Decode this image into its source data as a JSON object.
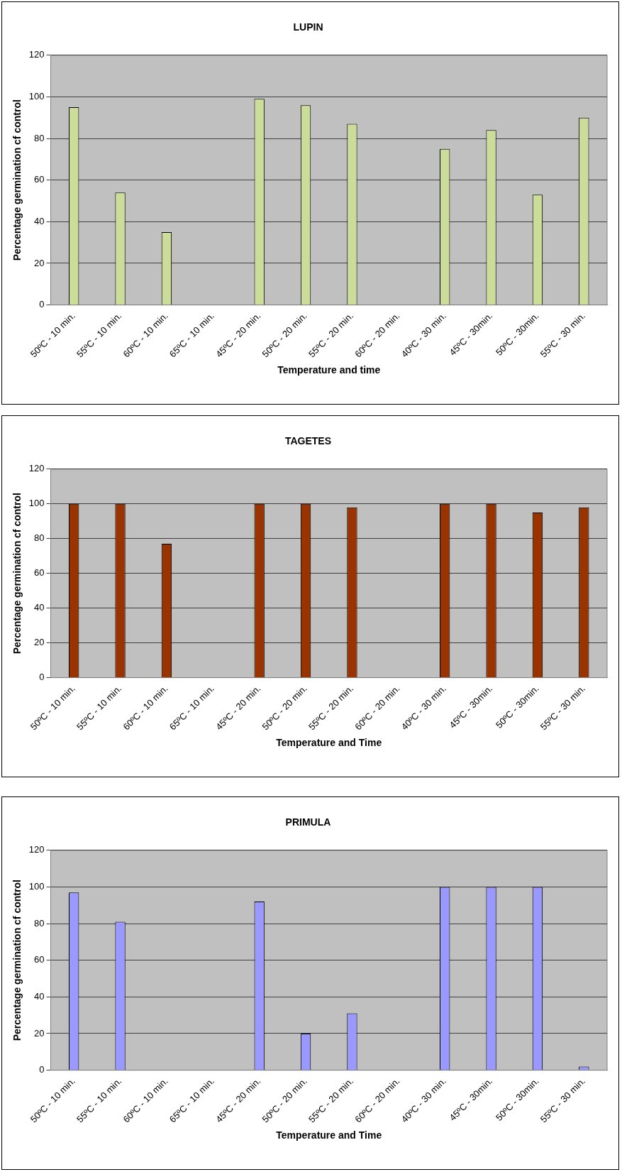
{
  "chart_data": [
    {
      "type": "bar",
      "title": "LUPIN",
      "xlabel": "Temperature and time",
      "ylabel": "Percentage germination cf control",
      "categories": [
        "50ºC - 10 min.",
        "55ºC - 10 min.",
        "60ºC - 10 min.",
        "65ºC - 10 min.",
        "45ºC - 20 min.",
        "50ºC - 20 min.",
        "55ºC - 20 min.",
        "60ºC - 20 min.",
        "40ºC - 30 min.",
        "45ºC - 30min.",
        "50ºC - 30min.",
        "55ºC - 30 min."
      ],
      "values": [
        95,
        54,
        35,
        null,
        99,
        96,
        87,
        null,
        75,
        84,
        53,
        90
      ],
      "color": "#ccdd99",
      "ylim": [
        0,
        120
      ],
      "yticks": [
        0,
        20,
        40,
        60,
        80,
        100,
        120
      ],
      "grid": "y",
      "legend": false
    },
    {
      "type": "bar",
      "title": "TAGETES",
      "xlabel": "Temperature and Time",
      "ylabel": "Percentage germination cf control",
      "categories": [
        "50ºC - 10 min.",
        "55ºC - 10 min.",
        "60ºC - 10 min.",
        "65ºC - 10 min.",
        "45ºC - 20 min.",
        "50ºC - 20 min.",
        "55ºC - 20 min.",
        "60ºC - 20 min.",
        "40ºC - 30 min.",
        "45ºC - 30min.",
        "50ºC - 30min.",
        "55ºC - 30 min."
      ],
      "values": [
        100,
        100,
        77,
        null,
        100,
        100,
        98,
        null,
        100,
        100,
        95,
        98
      ],
      "color": "#993300",
      "ylim": [
        0,
        120
      ],
      "yticks": [
        0,
        20,
        40,
        60,
        80,
        100,
        120
      ],
      "grid": "y",
      "legend": false
    },
    {
      "type": "bar",
      "title": "PRIMULA",
      "xlabel": "Temperature and Time",
      "ylabel": "Percentage germination cf control",
      "categories": [
        "50ºC - 10 min.",
        "55ºC - 10 min.",
        "60ºC - 10 min.",
        "65ºC - 10 min.",
        "45ºC - 20 min.",
        "50ºC - 20 min.",
        "55ºC - 20 min.",
        "60ºC - 20 min.",
        "40ºC - 30 min.",
        "45ºC - 30min.",
        "50ºC - 30min.",
        "55ºC - 30 min."
      ],
      "values": [
        97,
        81,
        null,
        null,
        92,
        20,
        31,
        null,
        100,
        100,
        100,
        2
      ],
      "color": "#9999ff",
      "ylim": [
        0,
        120
      ],
      "yticks": [
        0,
        20,
        40,
        60,
        80,
        100,
        120
      ],
      "grid": "y",
      "legend": false
    }
  ]
}
